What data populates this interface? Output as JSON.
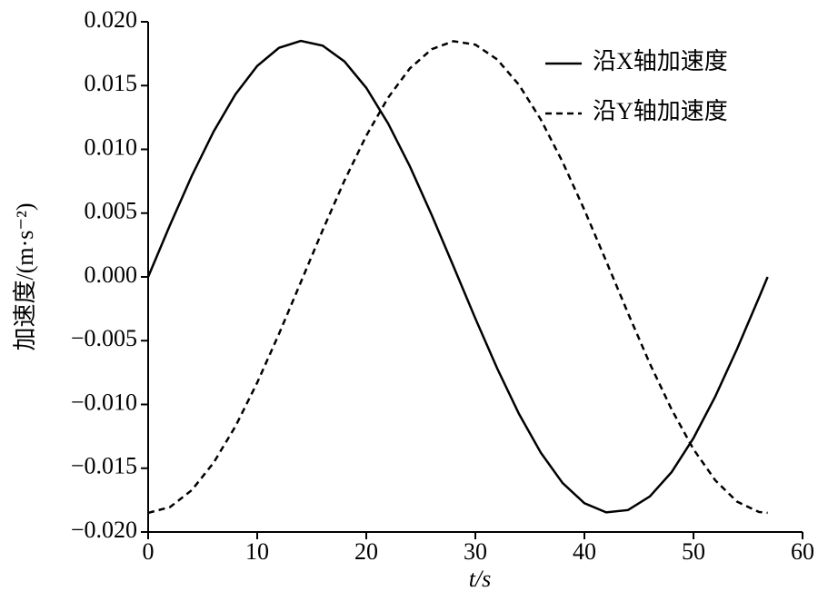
{
  "chart_data": {
    "type": "line",
    "x_label": "t/s",
    "y_label": "加速度/(m·s⁻²)",
    "x": [
      0,
      2,
      4,
      6,
      8,
      10,
      12,
      14,
      16,
      18,
      20,
      22,
      24,
      26,
      28,
      30,
      32,
      34,
      36,
      38,
      40,
      42,
      44,
      46,
      48,
      50,
      52,
      54,
      56,
      56.8
    ],
    "series": [
      {
        "name": "沿X轴加速度",
        "color": "#000000",
        "linestyle": "solid",
        "values": [
          0,
          0.00406,
          0.00792,
          0.01139,
          0.01431,
          0.01654,
          0.01796,
          0.0185,
          0.01813,
          0.01689,
          0.01482,
          0.01203,
          0.00866,
          0.00485,
          0.00082,
          -0.00326,
          -0.00717,
          -0.01074,
          -0.01378,
          -0.01616,
          -0.01774,
          -0.01846,
          -0.01828,
          -0.01721,
          -0.0153,
          -0.01264,
          -0.00937,
          -0.00564,
          -0.00164,
          0
        ]
      },
      {
        "name": "沿Y轴加速度",
        "color": "#000000",
        "linestyle": "dashed",
        "values": [
          -0.0185,
          -0.01805,
          -0.01672,
          -0.01457,
          -0.01172,
          -0.00829,
          -0.00446,
          -0.00041,
          0.00366,
          0.00755,
          0.01107,
          0.01405,
          0.01635,
          0.01785,
          0.01848,
          0.01821,
          0.01705,
          0.01506,
          0.01234,
          0.00901,
          0.00525,
          0.00123,
          -0.00285,
          -0.0068,
          -0.0104,
          -0.01351,
          -0.01595,
          -0.01762,
          -0.01843,
          -0.0185
        ]
      }
    ],
    "xlim": [
      0,
      60
    ],
    "xticks": [
      0,
      10,
      20,
      30,
      40,
      50,
      60
    ],
    "ylim": [
      -0.02,
      0.02
    ],
    "yticks": [
      {
        "value": -0.02,
        "label": "−0.020"
      },
      {
        "value": -0.015,
        "label": "−0.015"
      },
      {
        "value": -0.01,
        "label": "−0.010"
      },
      {
        "value": -0.005,
        "label": "−0.005"
      },
      {
        "value": 0,
        "label": "0.000"
      },
      {
        "value": 0.005,
        "label": "0.005"
      },
      {
        "value": 0.01,
        "label": "0.010"
      },
      {
        "value": 0.015,
        "label": "0.015"
      },
      {
        "value": 0.02,
        "label": "0.020"
      }
    ],
    "grid": false,
    "legend": "upper right"
  }
}
